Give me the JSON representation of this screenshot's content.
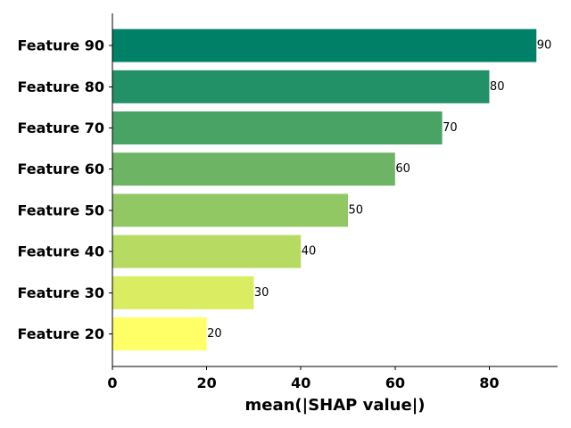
{
  "chart_data": {
    "type": "bar",
    "orientation": "horizontal",
    "categories": [
      "Feature 90",
      "Feature 80",
      "Feature 70",
      "Feature 60",
      "Feature 50",
      "Feature 40",
      "Feature 30",
      "Feature 20"
    ],
    "values": [
      90,
      80,
      70,
      60,
      50,
      40,
      30,
      20
    ],
    "data_labels": [
      "90",
      "80",
      "70",
      "60",
      "50",
      "40",
      "30",
      "20"
    ],
    "colors": [
      "#008066",
      "#239167",
      "#48a365",
      "#6db564",
      "#91c863",
      "#b6da62",
      "#daed62",
      "#ffff66"
    ],
    "xlabel": "mean(|SHAP value|)",
    "xlim": [
      0,
      94.5
    ],
    "xticks": [
      0,
      20,
      40,
      60,
      80
    ],
    "xtick_labels": [
      "0",
      "20",
      "40",
      "60",
      "80"
    ],
    "grid": false,
    "legend": false
  }
}
